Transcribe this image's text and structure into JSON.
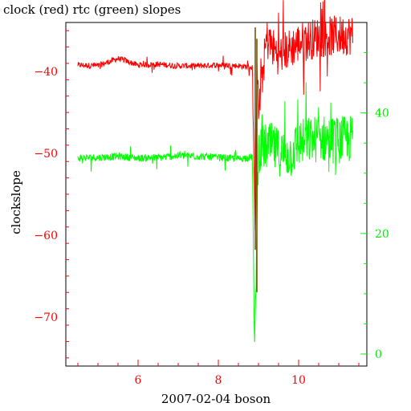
{
  "chart_data": {
    "type": "line",
    "title": "clock (red) rtc (green) slopes",
    "xlabel": "2007-02-04 boson",
    "ylabel": "clockslope",
    "xlim": [
      4.2,
      11.7
    ],
    "ylim_left": [
      -76,
      -34
    ],
    "ylim_right": [
      -2,
      55
    ],
    "x_ticks": [
      6,
      8,
      10
    ],
    "y_ticks_left": [
      -40,
      -50,
      -60,
      -70
    ],
    "y_ticks_right": [
      0,
      20,
      40
    ],
    "colors": {
      "red": "#ff0000",
      "green": "#00ff00",
      "dark": "#6b4a00"
    },
    "grid": false,
    "legend": "none",
    "series": [
      {
        "color": "#ff0000",
        "axis": "left",
        "summary_points": [
          [
            4.5,
            -39.2
          ],
          [
            5.0,
            -39.3
          ],
          [
            5.5,
            -38.4
          ],
          [
            6.0,
            -39.2
          ],
          [
            6.5,
            -39.1
          ],
          [
            7.0,
            -39.3
          ],
          [
            7.5,
            -39.3
          ],
          [
            8.0,
            -39.2
          ],
          [
            8.5,
            -39.3
          ],
          [
            8.85,
            -39.5
          ],
          [
            8.92,
            -61.8
          ],
          [
            8.96,
            -37.5
          ],
          [
            9.0,
            -45.0
          ],
          [
            9.2,
            -36.0
          ],
          [
            9.5,
            -38.0
          ],
          [
            10.0,
            -36.5
          ],
          [
            10.5,
            -35.8
          ],
          [
            11.0,
            -35.6
          ],
          [
            11.35,
            -35.5
          ]
        ]
      },
      {
        "color": "#00ff00",
        "axis": "right",
        "summary_points": [
          [
            4.5,
            32.5
          ],
          [
            5.0,
            32.6
          ],
          [
            5.5,
            32.8
          ],
          [
            6.0,
            32.5
          ],
          [
            6.5,
            32.6
          ],
          [
            7.0,
            32.9
          ],
          [
            7.5,
            32.8
          ],
          [
            8.0,
            32.6
          ],
          [
            8.5,
            32.4
          ],
          [
            8.85,
            32.7
          ],
          [
            8.9,
            0.2
          ],
          [
            9.0,
            34.0
          ],
          [
            9.3,
            34.5
          ],
          [
            9.5,
            33.5
          ],
          [
            9.8,
            33.0
          ],
          [
            10.0,
            35.0
          ],
          [
            10.5,
            35.8
          ],
          [
            11.0,
            35.5
          ],
          [
            11.35,
            35.7
          ]
        ]
      }
    ]
  }
}
